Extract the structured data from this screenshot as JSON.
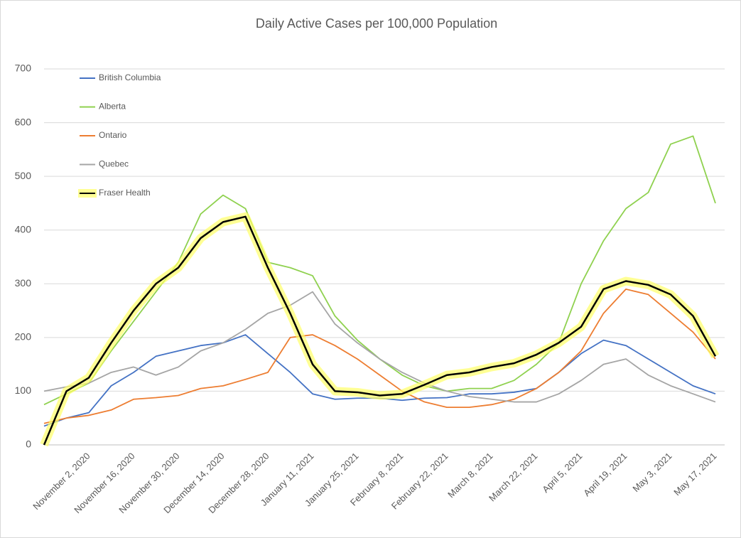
{
  "chart_data": {
    "type": "line",
    "title": "Daily Active Cases per 100,000 Population",
    "categories": [
      null,
      null,
      "November 2, 2020",
      null,
      "November 16, 2020",
      null,
      "November 30, 2020",
      null,
      "December 14, 2020",
      null,
      "December 28, 2020",
      null,
      "January 11, 2021",
      null,
      "January 25, 2021",
      null,
      "February 8, 2021",
      null,
      "February 22, 2021",
      null,
      "March 8, 2021",
      null,
      "March 22, 2021",
      null,
      "April 5, 2021",
      null,
      "April 19, 2021",
      null,
      "May 3, 2021",
      null,
      "May 17, 2021"
    ],
    "series": [
      {
        "name": "British Columbia",
        "color": "#4472c4",
        "values": [
          35,
          50,
          60,
          110,
          135,
          165,
          175,
          185,
          190,
          205,
          170,
          135,
          95,
          85,
          87,
          87,
          83,
          87,
          88,
          95,
          95,
          98,
          105,
          135,
          170,
          195,
          185,
          160,
          135,
          110,
          95
        ]
      },
      {
        "name": "Alberta",
        "color": "#8fd14f",
        "values": [
          75,
          95,
          115,
          175,
          230,
          285,
          340,
          430,
          465,
          440,
          340,
          330,
          315,
          240,
          195,
          160,
          130,
          110,
          100,
          105,
          105,
          120,
          150,
          190,
          300,
          380,
          440,
          470,
          560,
          575,
          450
        ]
      },
      {
        "name": "Ontario",
        "color": "#ed7d31",
        "values": [
          40,
          50,
          55,
          65,
          85,
          88,
          92,
          105,
          110,
          122,
          135,
          200,
          205,
          185,
          160,
          130,
          100,
          80,
          70,
          70,
          75,
          85,
          105,
          135,
          175,
          245,
          290,
          280,
          245,
          210,
          160
        ]
      },
      {
        "name": "Quebec",
        "color": "#a5a5a5",
        "values": [
          100,
          108,
          115,
          135,
          145,
          130,
          145,
          175,
          190,
          215,
          245,
          260,
          285,
          225,
          190,
          160,
          135,
          115,
          100,
          90,
          85,
          80,
          80,
          95,
          120,
          150,
          160,
          130,
          110,
          95,
          80
        ]
      },
      {
        "name": "Fraser Health",
        "color": "#000000",
        "values": [
          0,
          100,
          125,
          190,
          250,
          300,
          330,
          385,
          415,
          425,
          330,
          245,
          150,
          100,
          98,
          92,
          95,
          112,
          130,
          135,
          145,
          152,
          168,
          190,
          220,
          290,
          305,
          298,
          280,
          240,
          165
        ]
      }
    ],
    "ylim": [
      0,
      700
    ],
    "yticks": [
      0,
      100,
      200,
      300,
      400,
      500,
      600,
      700
    ],
    "grid": true
  }
}
